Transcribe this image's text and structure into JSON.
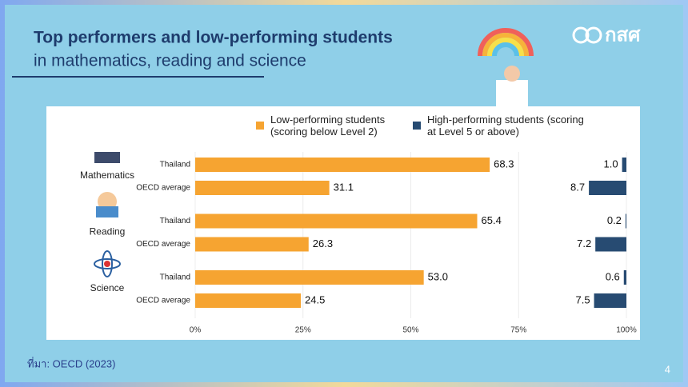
{
  "header": {
    "title": "Top performers and low-performing students",
    "subtitle": "in mathematics, reading and science",
    "logo": "กสศ"
  },
  "chart_data": {
    "type": "bar",
    "orientation": "horizontal",
    "groups": [
      "Mathematics",
      "Reading",
      "Science"
    ],
    "categories": [
      "Thailand",
      "OECD average",
      "Thailand",
      "OECD average",
      "Thailand",
      "OECD average"
    ],
    "series": [
      {
        "name": "Low-performing students (scoring below Level 2)",
        "color": "#f6a431",
        "anchor": "left",
        "values": [
          68.3,
          31.1,
          65.4,
          26.3,
          53.0,
          24.5
        ],
        "value_labels": [
          "68.3",
          "31.1",
          "65.4",
          "26.3",
          "53.0",
          "24.5"
        ]
      },
      {
        "name": "High-performing students (scoring at Level 5 or above)",
        "color": "#274b72",
        "anchor": "right",
        "values": [
          1.0,
          8.7,
          0.2,
          7.2,
          0.6,
          7.5
        ],
        "value_labels": [
          "1.0",
          "8.7",
          "0.2",
          "7.2",
          "0.6",
          "7.5"
        ]
      }
    ],
    "xlim": [
      0,
      100
    ],
    "xticks": [
      {
        "value": 0,
        "label": "0%"
      },
      {
        "value": 25,
        "label": "25%"
      },
      {
        "value": 50,
        "label": "50%"
      },
      {
        "value": 75,
        "label": "75%"
      },
      {
        "value": 100,
        "label": "100%"
      }
    ],
    "grid": true
  },
  "footer": {
    "source": "ที่มา: OECD (2023)",
    "page": "4"
  }
}
